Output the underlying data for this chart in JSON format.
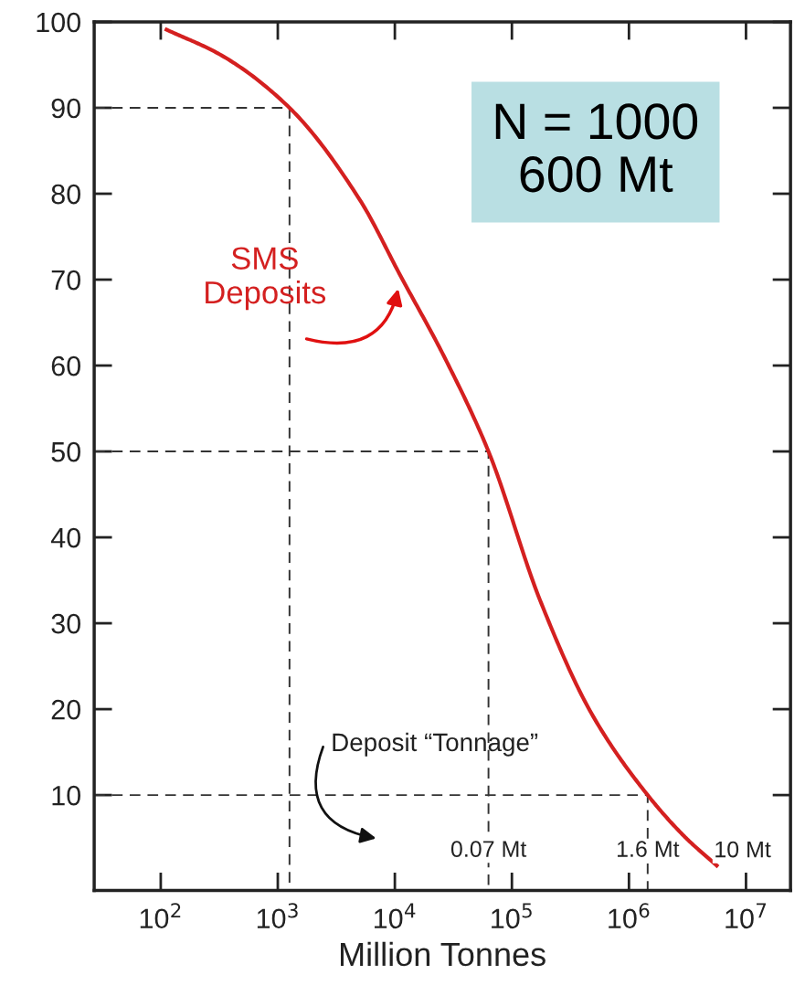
{
  "chart_data": {
    "type": "line",
    "xlabel": "Million Tonnes",
    "log": "x",
    "grid": false,
    "legend": false,
    "marker": "none",
    "xlim": [
      27,
      24000000
    ],
    "ylim": [
      -1.1,
      100
    ],
    "xticks": [
      {
        "value": 100,
        "label": "10$^{2}$"
      },
      {
        "value": 1000,
        "label": "10$^{3}$"
      },
      {
        "value": 10000,
        "label": "10$^{4}$"
      },
      {
        "value": 100000,
        "label": "10$^{5}$"
      },
      {
        "value": 1000000,
        "label": "10$^{6}$"
      },
      {
        "value": 10000000,
        "label": "10$^{7}$"
      }
    ],
    "yticks": [
      10,
      20,
      30,
      40,
      50,
      60,
      70,
      80,
      90,
      100
    ],
    "series": [
      {
        "color": "#d42020",
        "line_style": "solid",
        "x": [
          112,
          331,
          1259,
          5012,
          11220,
          26920,
          63100,
          173800,
          478600,
          1445000,
          3020000,
          5620000
        ],
        "values": [
          99.1,
          96.1,
          90,
          79.3,
          70.4,
          60.8,
          50,
          32.7,
          19.5,
          10,
          5.1,
          1.8
        ]
      },
      {
        "color": "#333333",
        "line_style": "dashed",
        "x": [
          27,
          1259,
          1259
        ],
        "values": [
          90,
          90,
          -1.1
        ]
      },
      {
        "color": "#333333",
        "line_style": "dashed",
        "x": [
          27,
          63100,
          63100
        ],
        "values": [
          50,
          50,
          -1.1
        ]
      },
      {
        "color": "#333333",
        "line_style": "dashed",
        "x": [
          27,
          1445000,
          1445000
        ],
        "values": [
          10,
          10,
          -1.1
        ]
      }
    ],
    "annotations": [
      "N = 1000\n600 Mt",
      {
        "text": "SMS\nDeposits",
        "x": 11220,
        "y": 70.4
      },
      "Deposit “Tonnage”",
      {
        "text": "0.07 Mt",
        "x": 63100,
        "y": 3.5
      },
      {
        "text": "1.6 Mt",
        "x": 1445000,
        "y": 3.5
      },
      "10 Mt"
    ]
  }
}
